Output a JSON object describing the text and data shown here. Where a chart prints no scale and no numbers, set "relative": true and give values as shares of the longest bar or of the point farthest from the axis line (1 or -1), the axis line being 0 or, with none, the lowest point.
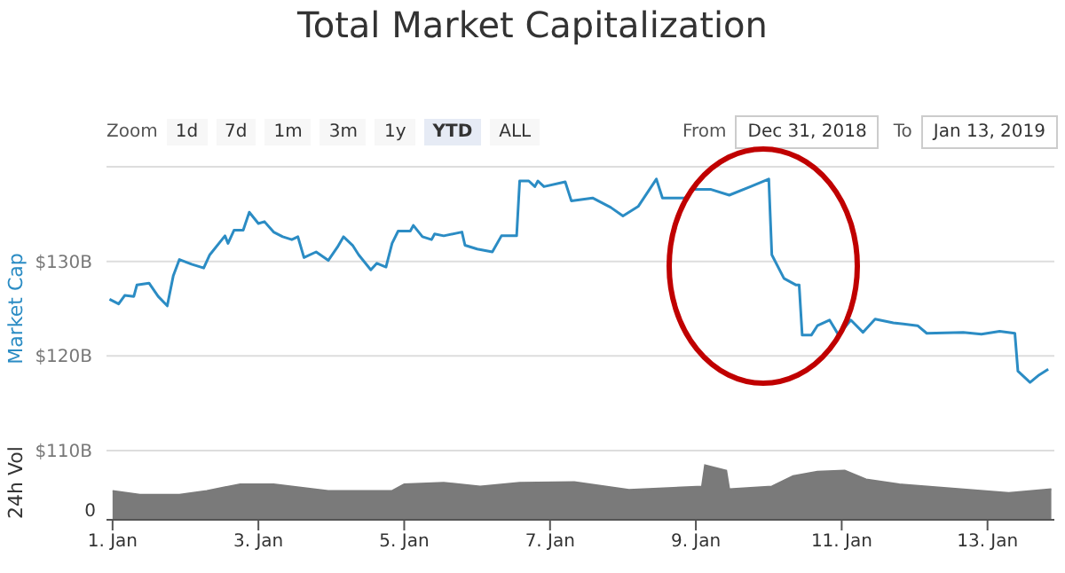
{
  "chart_data": [
    {
      "type": "line",
      "title": "Total Market Capitalization",
      "ylabel": "Market Cap",
      "annotations": [
        "Zoom",
        "1d",
        "7d",
        "1m",
        "3m",
        "1y",
        "YTD",
        "ALL",
        "From",
        "Dec 31, 2018",
        "To",
        "Jan 13, 2019"
      ],
      "xlim": [
        "2018-12-31T22:00",
        "2019-01-13T22:00"
      ],
      "ylim": [
        110,
        140
      ],
      "yticks": [
        {
          "value": 110,
          "label": "$110B"
        },
        {
          "value": 120,
          "label": "$120B"
        },
        {
          "value": 130,
          "label": "$130B"
        },
        {
          "value": 140,
          "label": null
        }
      ],
      "grid": "y",
      "legend": false,
      "marker": "none",
      "line_style": "solid",
      "tick_labels": "y",
      "x": [
        "2018-12-31T23:00",
        "2019-01-01T02:00",
        "2019-01-01T04:00",
        "2019-01-01T07:00",
        "2019-01-01T08:00",
        "2019-01-01T12:00",
        "2019-01-01T15:00",
        "2019-01-01T18:00",
        "2019-01-01T20:00",
        "2019-01-01T22:00",
        "2019-01-02T02:00",
        "2019-01-02T06:00",
        "2019-01-02T08:00",
        "2019-01-02T13:00",
        "2019-01-02T14:00",
        "2019-01-02T16:00",
        "2019-01-02T19:00",
        "2019-01-02T21:00",
        "2019-01-03T00:00",
        "2019-01-03T02:00",
        "2019-01-03T05:00",
        "2019-01-03T08:00",
        "2019-01-03T11:00",
        "2019-01-03T13:00",
        "2019-01-03T15:00",
        "2019-01-03T19:00",
        "2019-01-03T23:00",
        "2019-01-04T02:00",
        "2019-01-04T04:00",
        "2019-01-04T07:00",
        "2019-01-04T09:00",
        "2019-01-04T13:00",
        "2019-01-04T15:00",
        "2019-01-04T18:00",
        "2019-01-04T20:00",
        "2019-01-04T22:00",
        "2019-01-05T02:00",
        "2019-01-05T03:00",
        "2019-01-05T06:00",
        "2019-01-05T09:00",
        "2019-01-05T10:00",
        "2019-01-05T13:00",
        "2019-01-05T19:00",
        "2019-01-05T20:00",
        "2019-01-06T00:00",
        "2019-01-06T05:00",
        "2019-01-06T08:00",
        "2019-01-06T13:00",
        "2019-01-06T14:00",
        "2019-01-06T17:00",
        "2019-01-06T19:00",
        "2019-01-06T20:00",
        "2019-01-06T22:00",
        "2019-01-07T05:00",
        "2019-01-07T07:00",
        "2019-01-07T14:00",
        "2019-01-07T20:00",
        "2019-01-08T00:00",
        "2019-01-08T05:00",
        "2019-01-08T11:00",
        "2019-01-08T13:00",
        "2019-01-08T21:00",
        "2019-01-08T23:00",
        "2019-01-09T05:00",
        "2019-01-09T11:00",
        "2019-01-09T18:00",
        "2019-01-10T00:00",
        "2019-01-10T01:00",
        "2019-01-10T05:00",
        "2019-01-10T09:00",
        "2019-01-10T10:00",
        "2019-01-10T11:00",
        "2019-01-10T14:00",
        "2019-01-10T16:00",
        "2019-01-10T20:00",
        "2019-01-10T23:00",
        "2019-01-11T03:00",
        "2019-01-11T07:00",
        "2019-01-11T11:00",
        "2019-01-11T17:00",
        "2019-01-12T01:00",
        "2019-01-12T04:00",
        "2019-01-12T16:00",
        "2019-01-12T22:00",
        "2019-01-13T04:00",
        "2019-01-13T09:00",
        "2019-01-13T10:00",
        "2019-01-13T14:00",
        "2019-01-13T17:00",
        "2019-01-13T20:00"
      ],
      "series": [
        {
          "color": "#2b8cc4",
          "values": [
            126.0,
            125.5,
            126.4,
            126.3,
            127.5,
            127.7,
            126.3,
            125.3,
            128.5,
            130.2,
            129.7,
            129.3,
            130.7,
            132.7,
            131.9,
            133.3,
            133.3,
            135.2,
            134.0,
            134.2,
            133.1,
            132.6,
            132.3,
            132.6,
            130.4,
            131.0,
            130.1,
            131.5,
            132.6,
            131.7,
            130.7,
            129.1,
            129.8,
            129.4,
            131.9,
            133.2,
            133.2,
            133.8,
            132.6,
            132.3,
            132.9,
            132.7,
            133.1,
            131.7,
            131.3,
            131.0,
            132.7,
            132.7,
            138.5,
            138.5,
            137.9,
            138.5,
            137.9,
            138.4,
            136.4,
            136.7,
            135.7,
            134.8,
            135.8,
            138.7,
            136.7,
            136.7,
            137.6,
            137.6,
            137.0,
            137.9,
            138.7,
            130.7,
            128.2,
            127.5,
            127.5,
            122.2,
            122.2,
            123.2,
            123.8,
            122.2,
            123.8,
            122.5,
            123.9,
            123.5,
            123.2,
            122.4,
            122.5,
            122.3,
            122.6,
            122.4,
            118.4,
            117.2,
            118.0,
            118.6
          ]
        }
      ]
    },
    {
      "type": "area",
      "ylabel": "24h Vol",
      "annotations": [
        "0"
      ],
      "relative": true,
      "grid": false,
      "legend": false,
      "tick_labels": "x",
      "xlim": [
        "2018-12-31T22:00",
        "2019-01-13T22:00"
      ],
      "xticks": [
        {
          "value": "2019-01-01",
          "label": "1. Jan"
        },
        {
          "value": "2019-01-03",
          "label": "3. Jan"
        },
        {
          "value": "2019-01-05",
          "label": "5. Jan"
        },
        {
          "value": "2019-01-07",
          "label": "7. Jan"
        },
        {
          "value": "2019-01-09",
          "label": "9. Jan"
        },
        {
          "value": "2019-01-11",
          "label": "11. Jan"
        },
        {
          "value": "2019-01-13",
          "label": "13. Jan"
        }
      ],
      "x": [
        "2019-01-01T00:00",
        "2019-01-01T09:00",
        "2019-01-01T22:00",
        "2019-01-02T07:00",
        "2019-01-02T18:00",
        "2019-01-03T05:00",
        "2019-01-03T23:00",
        "2019-01-04T20:00",
        "2019-01-05T00:00",
        "2019-01-05T13:00",
        "2019-01-06T01:00",
        "2019-01-06T14:00",
        "2019-01-07T08:00",
        "2019-01-08T02:00",
        "2019-01-09T02:00",
        "2019-01-09T03:00",
        "2019-01-09T10:00",
        "2019-01-09T11:00",
        "2019-01-10T01:00",
        "2019-01-10T08:00",
        "2019-01-10T16:00",
        "2019-01-11T01:00",
        "2019-01-11T08:00",
        "2019-01-11T19:00",
        "2019-01-12T18:00",
        "2019-01-13T07:00",
        "2019-01-13T21:00"
      ],
      "series": [
        {
          "color": "#7a7a7a",
          "values": [
            0.53,
            0.46,
            0.46,
            0.53,
            0.65,
            0.65,
            0.53,
            0.53,
            0.65,
            0.68,
            0.61,
            0.68,
            0.69,
            0.55,
            0.61,
            1,
            0.9,
            0.56,
            0.61,
            0.8,
            0.88,
            0.9,
            0.74,
            0.65,
            0.55,
            0.49,
            0.56
          ]
        }
      ]
    }
  ]
}
